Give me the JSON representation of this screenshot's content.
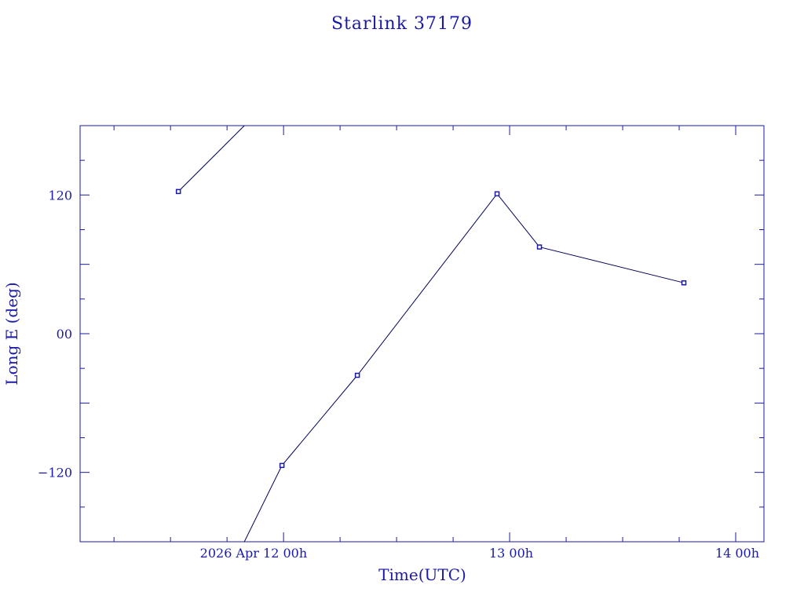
{
  "chart_data": {
    "type": "line",
    "title": "Starlink 37179",
    "xlabel": "Time(UTC)",
    "ylabel": "Long E (deg)",
    "x_range": [
      "2026-04-11T02:24",
      "2026-04-14T03:00"
    ],
    "ylim": [
      -180,
      180
    ],
    "x_tick_labels": [
      {
        "value": "2026-04-12T00:00",
        "label": "2026 Apr 12  00h"
      },
      {
        "value": "2026-04-13T00:00",
        "label": "13  00h"
      },
      {
        "value": "2026-04-14T00:00",
        "label": "14  00h"
      }
    ],
    "y_tick_labels": [
      {
        "value": 120,
        "label": "120"
      },
      {
        "value": 0,
        "label": "00"
      },
      {
        "value": -120,
        "label": "−120"
      }
    ],
    "x_minor_ticks_hours": 6,
    "y_minor_ticks_deg": 30,
    "grid": false,
    "colors": {
      "foreground": "#1a1aa6",
      "line": "#00005a",
      "background": "#ffffff"
    },
    "series": [
      {
        "points": [
          {
            "t": "2026-04-11T12:50",
            "y": 123
          },
          {
            "t": "2026-04-11T19:50",
            "y": 180
          }
        ]
      },
      {
        "points": [
          {
            "t": "2026-04-11T19:50",
            "y": -180
          },
          {
            "t": "2026-04-11T23:50",
            "y": -114
          },
          {
            "t": "2026-04-12T07:50",
            "y": -36
          },
          {
            "t": "2026-04-12T22:40",
            "y": 121
          },
          {
            "t": "2026-04-13T03:10",
            "y": 75
          },
          {
            "t": "2026-04-13T18:30",
            "y": 44
          }
        ]
      }
    ],
    "markers": [
      {
        "t": "2026-04-11T12:50",
        "y": 123
      },
      {
        "t": "2026-04-11T23:50",
        "y": -114
      },
      {
        "t": "2026-04-12T07:50",
        "y": -36
      },
      {
        "t": "2026-04-12T22:40",
        "y": 121
      },
      {
        "t": "2026-04-13T03:10",
        "y": 75
      },
      {
        "t": "2026-04-13T18:30",
        "y": 44
      }
    ]
  }
}
